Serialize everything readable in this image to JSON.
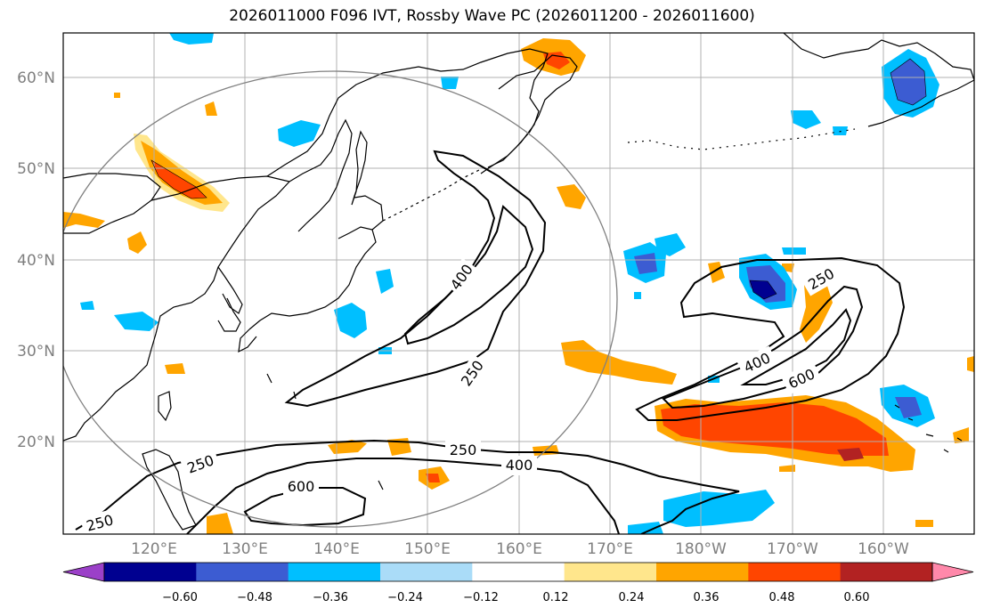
{
  "title": "2026011000 F096 IVT, Rossby Wave PC (2026011200 - 2026011600)",
  "lat_labels": [
    "60°N",
    "50°N",
    "40°N",
    "30°N",
    "20°N"
  ],
  "lon_labels": [
    "120°E",
    "130°E",
    "140°E",
    "150°E",
    "160°E",
    "170°E",
    "180°W",
    "170°W",
    "160°W"
  ],
  "ivt_contour_labels": [
    "400",
    "250",
    "250",
    "400",
    "600",
    "250",
    "400",
    "600",
    "250",
    "250"
  ],
  "colorbar": {
    "tick_labels": [
      "−0.60",
      "−0.48",
      "−0.36",
      "−0.24",
      "−0.12",
      "0.12",
      "0.24",
      "0.36",
      "0.48",
      "0.60"
    ],
    "colors": [
      "#9b40c8",
      "#000090",
      "#3c5cd2",
      "#00bfff",
      "#aadcf8",
      "#ffffff",
      "#ffe68c",
      "#ffa500",
      "#ff4500",
      "#b22222",
      "#ff88aa"
    ]
  }
}
